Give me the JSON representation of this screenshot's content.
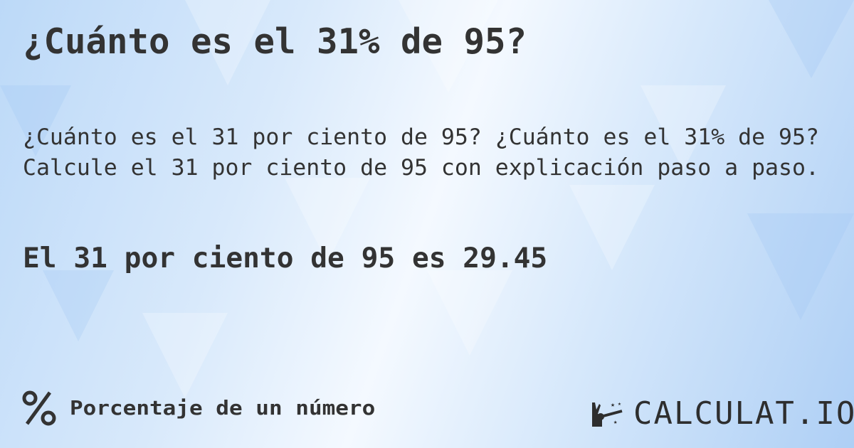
{
  "title": "¿Cuánto es el 31% de 95?",
  "description": [
    "¿Cuánto es el 31 por ciento de 95? ¿Cuánto es el 31% de 95?",
    "Calcule el 31 por ciento de 95 con explicación paso a paso."
  ],
  "result": "El 31 por ciento de 95 es 29.45",
  "footer": {
    "category_icon": "percent-icon",
    "category_label": "Porcentaje de un número"
  },
  "logo": {
    "icon": "magic-hand-wand-icon",
    "text": "CALCULAT.IO"
  },
  "colors": {
    "text": "#333333",
    "background": "#cfe4fa"
  }
}
